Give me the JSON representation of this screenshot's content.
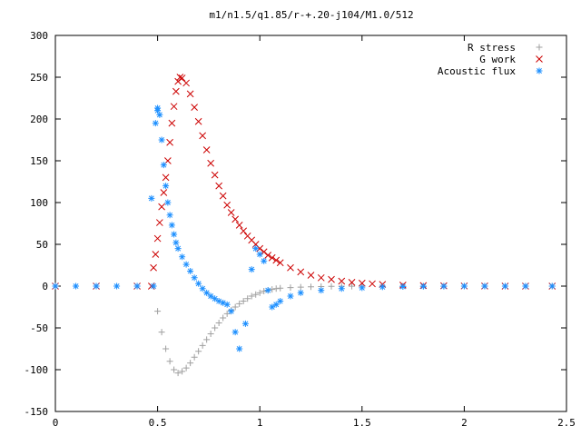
{
  "chart_data": {
    "type": "scatter",
    "title": "m1/n1.5/q1.85/r-+.20-j104/M1.0/512",
    "xlabel": "",
    "ylabel": "",
    "xlim": [
      0,
      2.5
    ],
    "ylim": [
      -150,
      300
    ],
    "x_ticks": [
      0,
      0.5,
      1,
      1.5,
      2,
      2.5
    ],
    "x_tick_labels": [
      "0",
      "0.5",
      "1",
      "1.5",
      "2",
      "2.5"
    ],
    "y_ticks": [
      -150,
      -100,
      -50,
      0,
      50,
      100,
      150,
      200,
      250,
      300
    ],
    "y_tick_labels": [
      "-150",
      "-100",
      "-50",
      "0",
      "50",
      "100",
      "150",
      "200",
      "250",
      "300"
    ],
    "grid": false,
    "legend_position": "top-right",
    "series": [
      {
        "name": "R stress",
        "marker": "plus",
        "color": "#a0a0a0",
        "x": [
          0.0,
          0.1,
          0.2,
          0.3,
          0.4,
          0.48,
          0.5,
          0.52,
          0.54,
          0.56,
          0.58,
          0.6,
          0.62,
          0.64,
          0.66,
          0.68,
          0.7,
          0.72,
          0.74,
          0.76,
          0.78,
          0.8,
          0.82,
          0.84,
          0.86,
          0.88,
          0.9,
          0.92,
          0.94,
          0.96,
          0.98,
          1.0,
          1.02,
          1.04,
          1.06,
          1.08,
          1.1,
          1.15,
          1.2,
          1.25,
          1.3,
          1.35,
          1.4,
          1.45,
          1.5,
          1.6,
          1.7,
          1.8,
          1.9,
          2.0,
          2.1,
          2.2,
          2.3,
          2.43
        ],
        "y": [
          0,
          0,
          0,
          0,
          0,
          0,
          -30,
          -55,
          -75,
          -90,
          -100,
          -104,
          -102,
          -98,
          -92,
          -85,
          -78,
          -71,
          -64,
          -57,
          -50,
          -44,
          -38,
          -33,
          -29,
          -25,
          -21,
          -18,
          -15,
          -12,
          -10,
          -8,
          -6,
          -5,
          -4,
          -3,
          -2.5,
          -1.8,
          -1.2,
          -0.8,
          -0.5,
          -0.3,
          -0.2,
          -0.1,
          0,
          0,
          0,
          0,
          0,
          0,
          0,
          0,
          0,
          0
        ]
      },
      {
        "name": "G work",
        "marker": "cross",
        "color": "#cc0000",
        "x": [
          0.0,
          0.2,
          0.4,
          0.47,
          0.48,
          0.49,
          0.5,
          0.51,
          0.52,
          0.53,
          0.54,
          0.55,
          0.56,
          0.57,
          0.58,
          0.59,
          0.6,
          0.61,
          0.62,
          0.64,
          0.66,
          0.68,
          0.7,
          0.72,
          0.74,
          0.76,
          0.78,
          0.8,
          0.82,
          0.84,
          0.86,
          0.88,
          0.9,
          0.92,
          0.94,
          0.96,
          0.98,
          1.0,
          1.02,
          1.04,
          1.06,
          1.08,
          1.1,
          1.15,
          1.2,
          1.25,
          1.3,
          1.35,
          1.4,
          1.45,
          1.5,
          1.55,
          1.6,
          1.7,
          1.8,
          1.9,
          2.0,
          2.1,
          2.2,
          2.3,
          2.43
        ],
        "y": [
          0,
          0,
          0,
          0,
          22,
          38,
          57,
          76,
          95,
          112,
          130,
          150,
          172,
          195,
          215,
          233,
          245,
          250,
          249,
          243,
          230,
          214,
          197,
          180,
          163,
          147,
          133,
          120,
          108,
          97,
          88,
          80,
          73,
          66,
          60,
          55,
          50,
          45,
          41,
          37,
          34,
          31,
          28,
          22,
          17,
          13,
          10,
          8,
          6,
          4.5,
          3.5,
          2.8,
          2,
          1.2,
          0.7,
          0.4,
          0.2,
          0.1,
          0,
          0,
          0
        ]
      },
      {
        "name": "Acoustic flux",
        "marker": "star",
        "color": "#1e90ff",
        "x": [
          0.0,
          0.1,
          0.2,
          0.3,
          0.4,
          0.48,
          0.47,
          0.49,
          0.5,
          0.5,
          0.51,
          0.52,
          0.53,
          0.54,
          0.55,
          0.56,
          0.57,
          0.58,
          0.59,
          0.6,
          0.62,
          0.64,
          0.66,
          0.68,
          0.7,
          0.72,
          0.74,
          0.76,
          0.78,
          0.8,
          0.82,
          0.84,
          0.86,
          0.88,
          0.9,
          0.93,
          0.96,
          0.98,
          1.0,
          1.02,
          1.04,
          1.06,
          1.08,
          1.1,
          1.15,
          1.2,
          1.3,
          1.4,
          1.5,
          1.6,
          1.7,
          1.8,
          1.9,
          2.0,
          2.1,
          2.2,
          2.3,
          2.43
        ],
        "y": [
          0,
          0,
          0,
          0,
          0,
          0,
          105,
          195,
          210,
          213,
          205,
          175,
          145,
          120,
          100,
          85,
          73,
          62,
          52,
          45,
          35,
          26,
          18,
          10,
          3,
          -3,
          -8,
          -12,
          -15,
          -18,
          -20,
          -22,
          -30,
          -55,
          -75,
          -45,
          20,
          45,
          38,
          30,
          -5,
          -25,
          -22,
          -18,
          -12,
          -8,
          -5,
          -3,
          -2,
          -1,
          -0.5,
          -0.3,
          -0.1,
          0,
          0,
          0,
          0,
          0
        ]
      }
    ]
  }
}
